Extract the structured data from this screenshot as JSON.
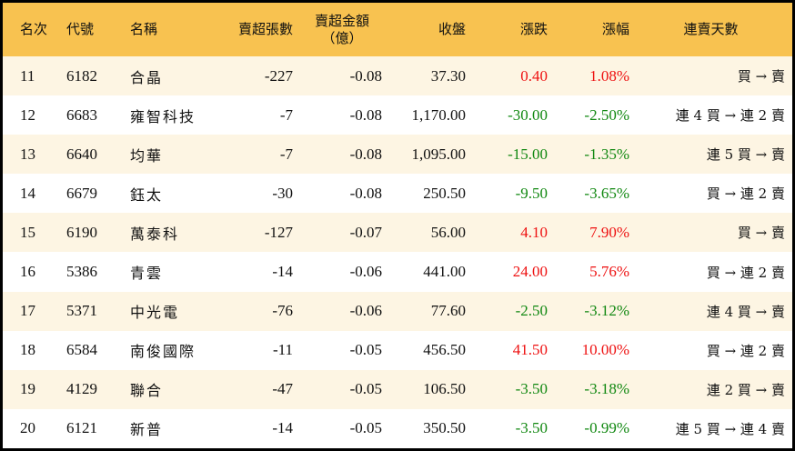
{
  "colors": {
    "header_bg": "#f8c250",
    "row_alt_bg": "#fdf5e3",
    "up": "#ee1111",
    "down": "#118811"
  },
  "headers": [
    "名次",
    "代號",
    "名稱",
    "賣超張數",
    "賣超金額\n（億）",
    "收盤",
    "漲跌",
    "漲幅",
    "連賣天數"
  ],
  "rows": [
    {
      "rank": "11",
      "code": "6182",
      "name": "合晶",
      "shares": "-227",
      "amount": "-0.08",
      "close": "37.30",
      "change": "0.40",
      "pct": "1.08%",
      "trend": "up",
      "streak": "買 → 賣"
    },
    {
      "rank": "12",
      "code": "6683",
      "name": "雍智科技",
      "shares": "-7",
      "amount": "-0.08",
      "close": "1,170.00",
      "change": "-30.00",
      "pct": "-2.50%",
      "trend": "down",
      "streak": "連 4 買 → 連 2 賣"
    },
    {
      "rank": "13",
      "code": "6640",
      "name": "均華",
      "shares": "-7",
      "amount": "-0.08",
      "close": "1,095.00",
      "change": "-15.00",
      "pct": "-1.35%",
      "trend": "down",
      "streak": "連 5 買 → 賣"
    },
    {
      "rank": "14",
      "code": "6679",
      "name": "鈺太",
      "shares": "-30",
      "amount": "-0.08",
      "close": "250.50",
      "change": "-9.50",
      "pct": "-3.65%",
      "trend": "down",
      "streak": "買 → 連 2 賣"
    },
    {
      "rank": "15",
      "code": "6190",
      "name": "萬泰科",
      "shares": "-127",
      "amount": "-0.07",
      "close": "56.00",
      "change": "4.10",
      "pct": "7.90%",
      "trend": "up",
      "streak": "買 → 賣"
    },
    {
      "rank": "16",
      "code": "5386",
      "name": "青雲",
      "shares": "-14",
      "amount": "-0.06",
      "close": "441.00",
      "change": "24.00",
      "pct": "5.76%",
      "trend": "up",
      "streak": "買 → 連 2 賣"
    },
    {
      "rank": "17",
      "code": "5371",
      "name": "中光電",
      "shares": "-76",
      "amount": "-0.06",
      "close": "77.60",
      "change": "-2.50",
      "pct": "-3.12%",
      "trend": "down",
      "streak": "連 4 買 → 賣"
    },
    {
      "rank": "18",
      "code": "6584",
      "name": "南俊國際",
      "shares": "-11",
      "amount": "-0.05",
      "close": "456.50",
      "change": "41.50",
      "pct": "10.00%",
      "trend": "up",
      "streak": "買 → 連 2 賣"
    },
    {
      "rank": "19",
      "code": "4129",
      "name": "聯合",
      "shares": "-47",
      "amount": "-0.05",
      "close": "106.50",
      "change": "-3.50",
      "pct": "-3.18%",
      "trend": "down",
      "streak": "連 2 買 → 賣"
    },
    {
      "rank": "20",
      "code": "6121",
      "name": "新普",
      "shares": "-14",
      "amount": "-0.05",
      "close": "350.50",
      "change": "-3.50",
      "pct": "-0.99%",
      "trend": "down",
      "streak": "連 5 買 → 連 4 賣"
    }
  ]
}
